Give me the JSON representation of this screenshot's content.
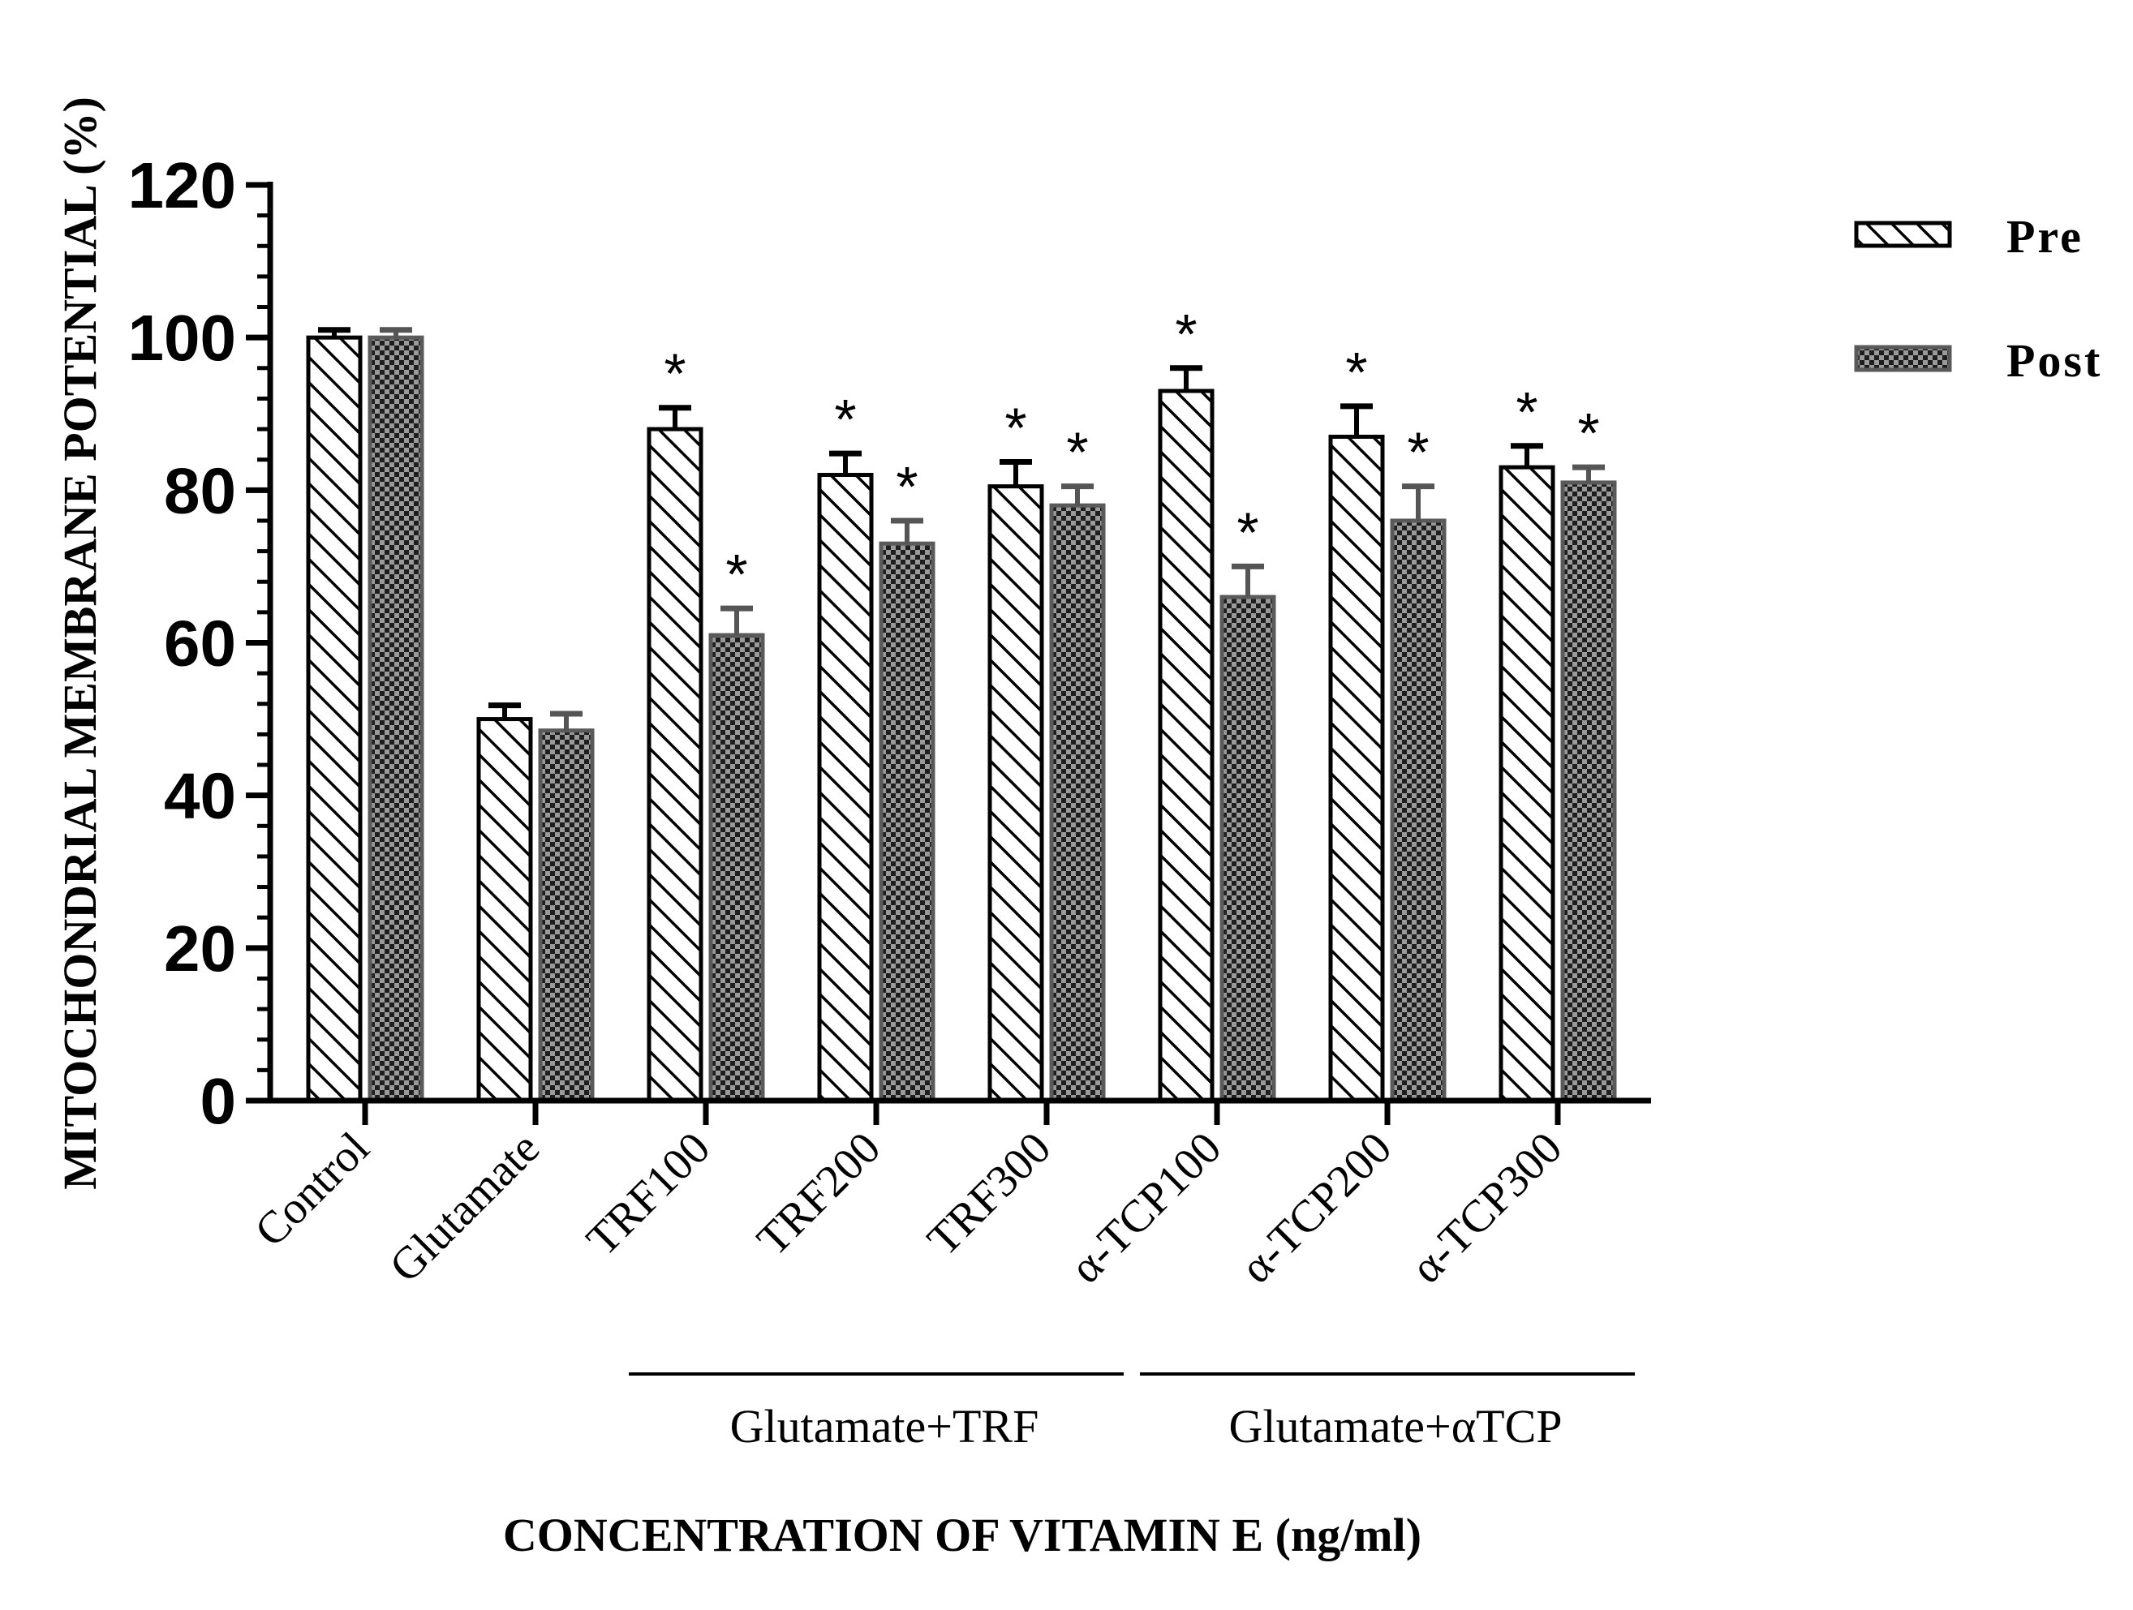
{
  "chart_data": {
    "type": "bar",
    "title": "",
    "xlabel": "CONCENTRATION OF VITAMIN E (ng/ml)",
    "ylabel": "MITOCHONDRIAL MEMBRANE POTENTIAL (%)",
    "ylim": [
      0,
      120
    ],
    "yticks": [
      0,
      20,
      40,
      60,
      80,
      100,
      120
    ],
    "categories": [
      "Control",
      "Glutamate",
      "TRF100",
      "TRF200",
      "TRF300",
      "α-TCP100",
      "α-TCP200",
      "α-TCP300"
    ],
    "series": [
      {
        "name": "Pre",
        "values": [
          100,
          50,
          88,
          82,
          80.5,
          93,
          87,
          83
        ],
        "errors": [
          1,
          1.8,
          2.8,
          2.8,
          3.2,
          3,
          4,
          2.8
        ],
        "significant": [
          false,
          false,
          true,
          true,
          true,
          true,
          true,
          true
        ],
        "pattern": "diagonal-hatch",
        "color": "#ffffff",
        "stroke": "#000000"
      },
      {
        "name": "Post",
        "values": [
          100,
          48.5,
          61,
          73,
          78,
          66,
          76,
          81
        ],
        "errors": [
          1,
          2.2,
          3.5,
          3,
          2.5,
          4,
          4.5,
          2
        ],
        "significant": [
          false,
          false,
          true,
          true,
          true,
          true,
          true,
          true
        ],
        "pattern": "checkerboard",
        "color": "#3a3a3a",
        "stroke": "#5a5a5a"
      }
    ],
    "significance_symbol": "*",
    "groups": [
      {
        "label": "Glutamate+TRF",
        "from": "TRF100",
        "to": "TRF300"
      },
      {
        "label": "Glutamate+αTCP",
        "from": "α-TCP100",
        "to": "α-TCP300"
      }
    ],
    "legend": {
      "position": "top-right",
      "entries": [
        "Pre",
        "Post"
      ]
    },
    "grid": false
  }
}
